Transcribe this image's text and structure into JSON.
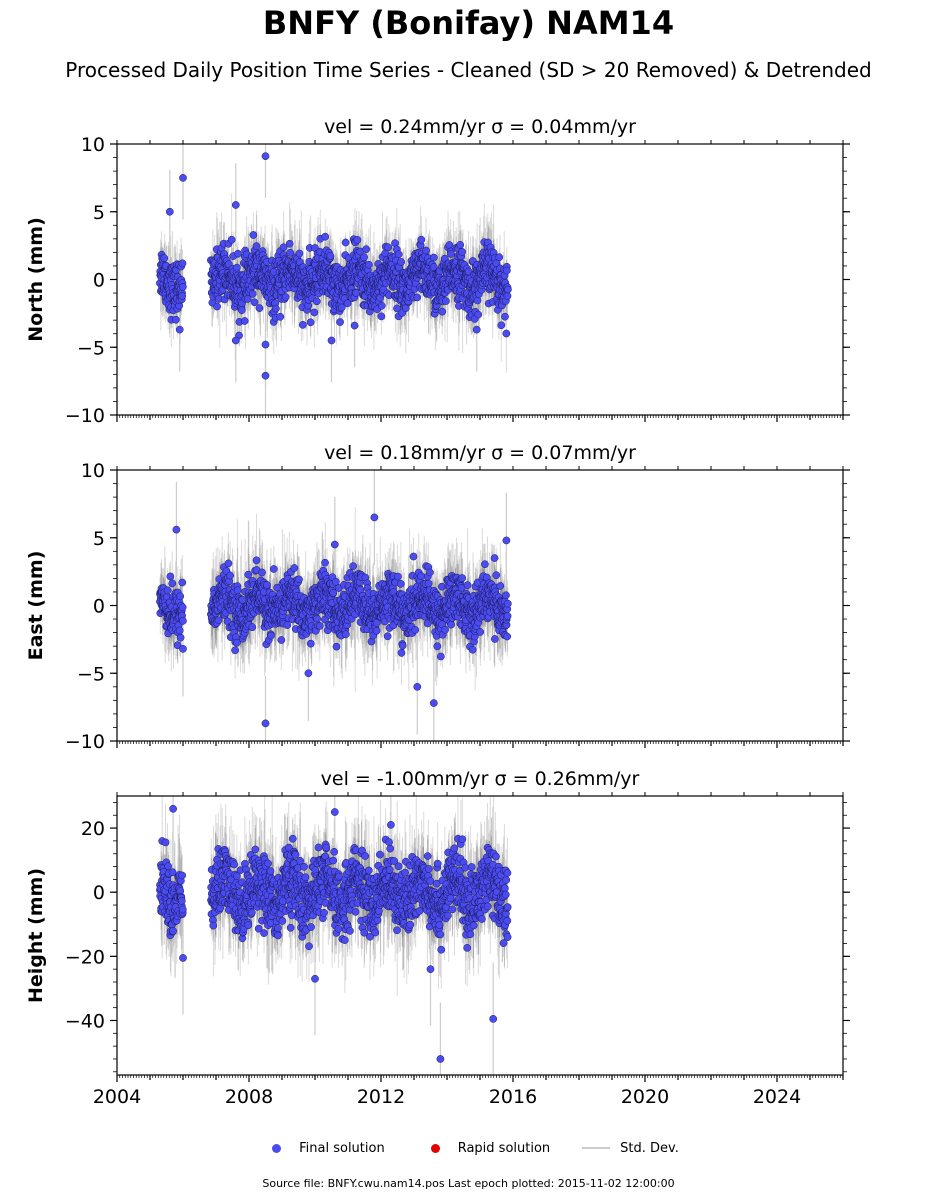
{
  "title": "BNFY (Bonifay) NAM14",
  "subtitle": "Processed Daily Position Time Series - Cleaned (SD > 20 Removed) & Detrended",
  "legend": {
    "final": "Final solution",
    "rapid": "Rapid solution",
    "std": "Std. Dev."
  },
  "footer": "Source file: BNFY.cwu.nam14.pos  Last epoch plotted: 2015-11-02 12:00:00",
  "colors": {
    "final": "#4b4bf2",
    "rapid": "#e00000",
    "std": "#cccccc",
    "edge": "#1a1a55"
  },
  "chart_data": [
    {
      "type": "scatter",
      "title": "vel = 0.24mm/yr   σ = 0.04mm/yr",
      "ylabel": "North (mm)",
      "xlim": [
        2004,
        2026
      ],
      "ylim": [
        -10,
        10
      ],
      "yticks": [
        -10,
        -5,
        0,
        5,
        10
      ],
      "ytick_labels": [
        "−10",
        "−5",
        "0",
        "5",
        "10"
      ],
      "scatter_sd": 1.3,
      "err_sd": 1.4,
      "segments": [
        [
          2005.3,
          2006.0
        ],
        [
          2006.85,
          2015.85
        ]
      ],
      "outliers": [
        [
          2005.6,
          5.0
        ],
        [
          2006.0,
          7.5
        ],
        [
          2008.5,
          9.1
        ],
        [
          2007.6,
          5.5
        ],
        [
          2008.5,
          -7.1
        ],
        [
          2008.5,
          -4.8
        ],
        [
          2007.6,
          -4.5
        ],
        [
          2010.5,
          -4.5
        ],
        [
          2014.9,
          -3.7
        ],
        [
          2005.9,
          -3.7
        ],
        [
          2011.2,
          -3.4
        ]
      ]
    },
    {
      "type": "scatter",
      "title": "vel = 0.18mm/yr   σ = 0.07mm/yr",
      "ylabel": "East (mm)",
      "xlim": [
        2004,
        2026
      ],
      "ylim": [
        -10,
        10
      ],
      "yticks": [
        -10,
        -5,
        0,
        5,
        10
      ],
      "ytick_labels": [
        "−10",
        "−5",
        "0",
        "5",
        "10"
      ],
      "scatter_sd": 1.3,
      "err_sd": 1.6,
      "segments": [
        [
          2005.3,
          2006.0
        ],
        [
          2006.85,
          2015.85
        ]
      ],
      "outliers": [
        [
          2005.8,
          5.6
        ],
        [
          2011.8,
          6.5
        ],
        [
          2008.5,
          -8.7
        ],
        [
          2013.1,
          -6.0
        ],
        [
          2013.6,
          -7.2
        ],
        [
          2006.0,
          -3.2
        ],
        [
          2009.8,
          -5.0
        ],
        [
          2010.6,
          4.5
        ],
        [
          2015.8,
          4.8
        ]
      ]
    },
    {
      "type": "scatter",
      "title": "vel = -1.00mm/yr   σ = 0.26mm/yr",
      "ylabel": "Height (mm)",
      "xlim": [
        2004,
        2026
      ],
      "ylim": [
        -57,
        30
      ],
      "yticks": [
        -40,
        -20,
        0,
        20
      ],
      "ytick_labels": [
        "−40",
        "−20",
        "0",
        "20"
      ],
      "scatter_sd": 7.0,
      "err_sd": 8.0,
      "segments": [
        [
          2005.3,
          2006.0
        ],
        [
          2006.85,
          2015.85
        ]
      ],
      "outliers": [
        [
          2005.7,
          26.0
        ],
        [
          2010.6,
          25.0
        ],
        [
          2012.3,
          21.0
        ],
        [
          2013.8,
          -52.0
        ],
        [
          2015.4,
          -39.5
        ],
        [
          2013.5,
          -24.0
        ],
        [
          2010.0,
          -27.0
        ],
        [
          2006.0,
          -20.5
        ]
      ]
    }
  ],
  "xaxis": {
    "ticks": [
      2004,
      2008,
      2012,
      2016,
      2020,
      2024
    ],
    "labels": [
      "2004",
      "2008",
      "2012",
      "2016",
      "2020",
      "2024"
    ]
  }
}
